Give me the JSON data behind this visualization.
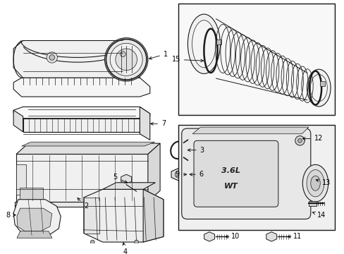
{
  "bg": "#ffffff",
  "lc": "#1a1a1a",
  "lc_light": "#555555",
  "fill_white": "#ffffff",
  "fill_light": "#f0f0f0",
  "fill_mid": "#d8d8d8",
  "fill_dark": "#b0b0b0",
  "fill_box": "#e8e8e8",
  "fig_width": 4.89,
  "fig_height": 3.6,
  "dpi": 100,
  "label_fontsize": 7
}
